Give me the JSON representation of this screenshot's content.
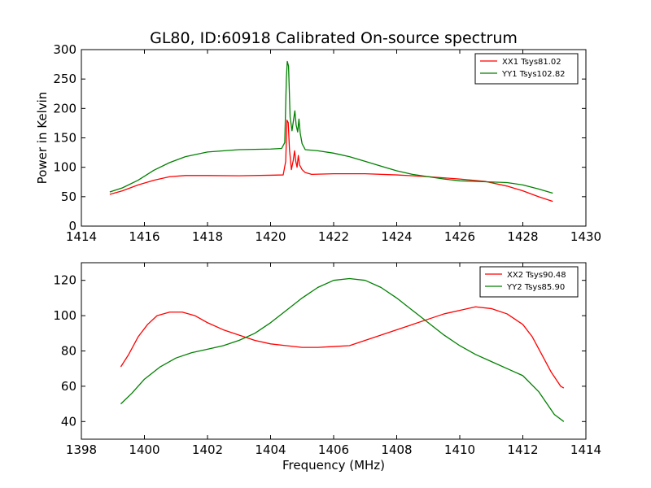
{
  "chart_data": [
    {
      "type": "line",
      "title": "GL80, ID:60918 Calibrated On-source spectrum",
      "xlabel": "",
      "ylabel": "Power in Kelvin",
      "xlim": [
        1414,
        1430
      ],
      "ylim": [
        0,
        300
      ],
      "xticks": [
        1414,
        1416,
        1418,
        1420,
        1422,
        1424,
        1426,
        1428,
        1430
      ],
      "yticks": [
        0,
        50,
        100,
        150,
        200,
        250,
        300
      ],
      "grid": false,
      "legend_position": "top-right",
      "series": [
        {
          "name": "XX1 Tsys81.02",
          "color": "#ff0000",
          "points": [
            [
              1414.9,
              54
            ],
            [
              1415.3,
              60
            ],
            [
              1415.8,
              70
            ],
            [
              1416.3,
              78
            ],
            [
              1416.8,
              84
            ],
            [
              1417.3,
              86
            ],
            [
              1418,
              86
            ],
            [
              1419,
              85.5
            ],
            [
              1420,
              86.5
            ],
            [
              1420.4,
              87
            ],
            [
              1420.48,
              110
            ],
            [
              1420.52,
              180
            ],
            [
              1420.56,
              176
            ],
            [
              1420.6,
              130
            ],
            [
              1420.66,
              96
            ],
            [
              1420.72,
              112
            ],
            [
              1420.76,
              128
            ],
            [
              1420.8,
              110
            ],
            [
              1420.84,
              100
            ],
            [
              1420.88,
              120
            ],
            [
              1420.92,
              104
            ],
            [
              1421,
              96
            ],
            [
              1421.1,
              91
            ],
            [
              1421.3,
              88
            ],
            [
              1422,
              89
            ],
            [
              1423,
              89
            ],
            [
              1424,
              87
            ],
            [
              1425,
              84
            ],
            [
              1426,
              80
            ],
            [
              1426.8,
              76
            ],
            [
              1427.5,
              68
            ],
            [
              1428,
              60
            ],
            [
              1428.5,
              50
            ],
            [
              1428.95,
              42
            ]
          ]
        },
        {
          "name": "YY1 Tsys102.82",
          "color": "#008000",
          "points": [
            [
              1414.9,
              58
            ],
            [
              1415.3,
              65
            ],
            [
              1415.8,
              78
            ],
            [
              1416.3,
              95
            ],
            [
              1416.8,
              108
            ],
            [
              1417.3,
              118
            ],
            [
              1418,
              126
            ],
            [
              1419,
              130
            ],
            [
              1420,
              131
            ],
            [
              1420.35,
              132
            ],
            [
              1420.45,
              142
            ],
            [
              1420.5,
              250
            ],
            [
              1420.53,
              280
            ],
            [
              1420.57,
              272
            ],
            [
              1420.62,
              185
            ],
            [
              1420.68,
              162
            ],
            [
              1420.74,
              185
            ],
            [
              1420.77,
              196
            ],
            [
              1420.81,
              172
            ],
            [
              1420.86,
              160
            ],
            [
              1420.9,
              182
            ],
            [
              1420.94,
              158
            ],
            [
              1421,
              140
            ],
            [
              1421.1,
              130
            ],
            [
              1421.5,
              128
            ],
            [
              1422,
              124
            ],
            [
              1422.5,
              118
            ],
            [
              1423,
              110
            ],
            [
              1423.5,
              102
            ],
            [
              1424,
              94
            ],
            [
              1424.5,
              88
            ],
            [
              1425,
              84
            ],
            [
              1425.5,
              80
            ],
            [
              1426,
              77
            ],
            [
              1426.5,
              76
            ],
            [
              1427,
              75
            ],
            [
              1427.5,
              74
            ],
            [
              1428,
              70
            ],
            [
              1428.5,
              63
            ],
            [
              1428.95,
              56
            ]
          ]
        }
      ]
    },
    {
      "type": "line",
      "title": "",
      "xlabel": "Frequency (MHz)",
      "ylabel": "",
      "xlim": [
        1398,
        1414
      ],
      "ylim": [
        30,
        130
      ],
      "xticks": [
        1398,
        1400,
        1402,
        1404,
        1406,
        1408,
        1410,
        1412,
        1414
      ],
      "yticks": [
        40,
        60,
        80,
        100,
        120
      ],
      "grid": false,
      "legend_position": "top-right",
      "series": [
        {
          "name": "XX2 Tsys90.48",
          "color": "#ff0000",
          "points": [
            [
              1399.25,
              71
            ],
            [
              1399.5,
              78
            ],
            [
              1399.8,
              88
            ],
            [
              1400.1,
              95
            ],
            [
              1400.4,
              100
            ],
            [
              1400.8,
              102
            ],
            [
              1401.2,
              102
            ],
            [
              1401.6,
              100
            ],
            [
              1402,
              96
            ],
            [
              1402.5,
              92
            ],
            [
              1403,
              89
            ],
            [
              1403.5,
              86
            ],
            [
              1404,
              84
            ],
            [
              1404.5,
              83
            ],
            [
              1405,
              82
            ],
            [
              1405.5,
              82
            ],
            [
              1406,
              82.5
            ],
            [
              1406.5,
              83
            ],
            [
              1407,
              86
            ],
            [
              1407.5,
              89
            ],
            [
              1408,
              92
            ],
            [
              1408.5,
              95
            ],
            [
              1409,
              98
            ],
            [
              1409.5,
              101
            ],
            [
              1410,
              103
            ],
            [
              1410.5,
              105
            ],
            [
              1411,
              104
            ],
            [
              1411.5,
              101
            ],
            [
              1412,
              95
            ],
            [
              1412.3,
              88
            ],
            [
              1412.6,
              78
            ],
            [
              1412.9,
              68
            ],
            [
              1413.2,
              60
            ],
            [
              1413.3,
              59
            ]
          ]
        },
        {
          "name": "YY2 Tsys85.90",
          "color": "#008000",
          "points": [
            [
              1399.25,
              50
            ],
            [
              1399.6,
              56
            ],
            [
              1400,
              64
            ],
            [
              1400.5,
              71
            ],
            [
              1401,
              76
            ],
            [
              1401.5,
              79
            ],
            [
              1402,
              81
            ],
            [
              1402.5,
              83
            ],
            [
              1403,
              86
            ],
            [
              1403.5,
              90
            ],
            [
              1404,
              96
            ],
            [
              1404.5,
              103
            ],
            [
              1405,
              110
            ],
            [
              1405.5,
              116
            ],
            [
              1406,
              120
            ],
            [
              1406.5,
              121
            ],
            [
              1407,
              120
            ],
            [
              1407.5,
              116
            ],
            [
              1408,
              110
            ],
            [
              1408.5,
              103
            ],
            [
              1409,
              96
            ],
            [
              1409.5,
              89
            ],
            [
              1410,
              83
            ],
            [
              1410.5,
              78
            ],
            [
              1411,
              74
            ],
            [
              1411.5,
              70
            ],
            [
              1412,
              66
            ],
            [
              1412.5,
              57
            ],
            [
              1413,
              44
            ],
            [
              1413.3,
              40
            ]
          ]
        }
      ]
    }
  ]
}
